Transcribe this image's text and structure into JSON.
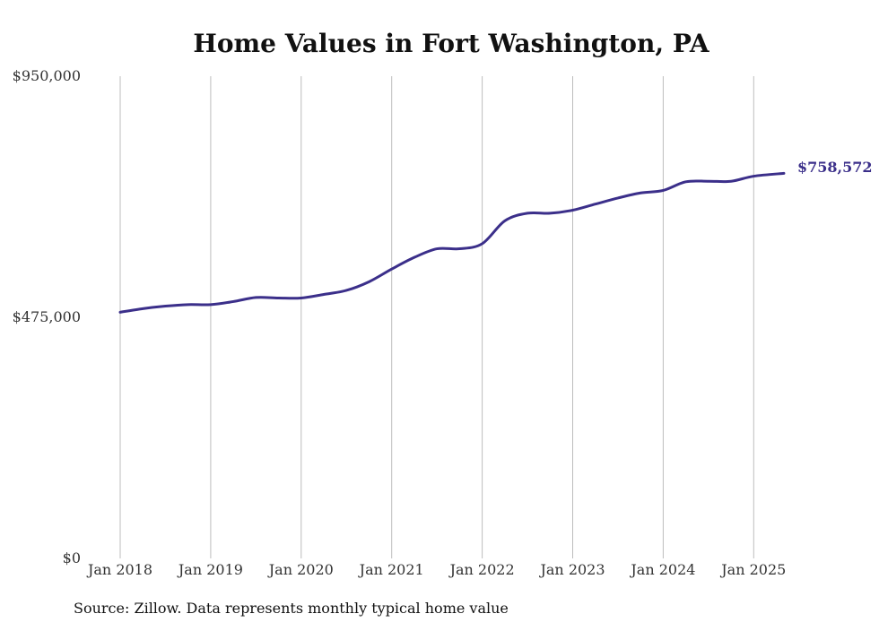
{
  "chart_data": {
    "type": "line",
    "title": "Home Values in Fort Washington, PA",
    "xlabel": "",
    "ylabel": "",
    "ylim": [
      0,
      950000
    ],
    "xlim": [
      "2018-01",
      "2025-05"
    ],
    "grid": {
      "vertical": true,
      "horizontal": false
    },
    "line_color": "#3b2f8a",
    "yticks": [
      {
        "value": 0,
        "label": "$0"
      },
      {
        "value": 475000,
        "label": "$475,000"
      },
      {
        "value": 950000,
        "label": "$950,000"
      }
    ],
    "xticks": [
      {
        "value": "2018-01",
        "label": "Jan 2018"
      },
      {
        "value": "2019-01",
        "label": "Jan 2019"
      },
      {
        "value": "2020-01",
        "label": "Jan 2020"
      },
      {
        "value": "2021-01",
        "label": "Jan 2021"
      },
      {
        "value": "2022-01",
        "label": "Jan 2022"
      },
      {
        "value": "2023-01",
        "label": "Jan 2023"
      },
      {
        "value": "2024-01",
        "label": "Jan 2024"
      },
      {
        "value": "2025-01",
        "label": "Jan 2025"
      }
    ],
    "series": [
      {
        "x": [
          "2018-01",
          "2018-04",
          "2018-07",
          "2018-10",
          "2019-01",
          "2019-04",
          "2019-07",
          "2019-10",
          "2020-01",
          "2020-04",
          "2020-07",
          "2020-10",
          "2021-01",
          "2021-04",
          "2021-07",
          "2021-10",
          "2022-01",
          "2022-04",
          "2022-07",
          "2022-10",
          "2023-01",
          "2023-04",
          "2023-07",
          "2023-10",
          "2024-01",
          "2024-04",
          "2024-07",
          "2024-10",
          "2025-01",
          "2025-05"
        ],
        "values": [
          485000,
          492000,
          497000,
          500000,
          500000,
          506000,
          514000,
          513000,
          513000,
          520000,
          528000,
          545000,
          570000,
          593000,
          610000,
          610000,
          620000,
          665000,
          680000,
          680000,
          686000,
          698000,
          710000,
          720000,
          725000,
          742000,
          743000,
          743000,
          753000,
          758572
        ]
      }
    ],
    "end_label": "$758,572",
    "source": "Source: Zillow. Data represents monthly typical home value"
  }
}
